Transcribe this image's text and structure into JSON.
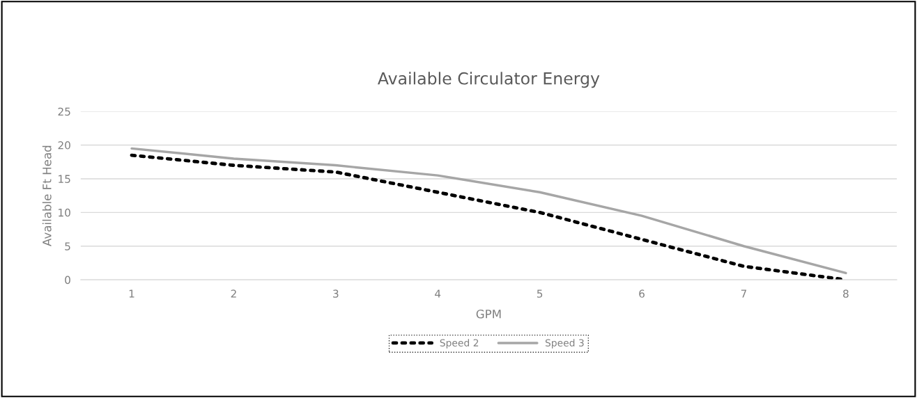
{
  "chart_data": {
    "type": "line",
    "title": "Available Circulator Energy",
    "xlabel": "GPM",
    "ylabel": "Available Ft Head",
    "categories": [
      "1",
      "2",
      "3",
      "4",
      "5",
      "6",
      "7",
      "8"
    ],
    "series": [
      {
        "name": "Speed 2",
        "color": "#000000",
        "line_style": "dotted",
        "values": [
          18.5,
          17,
          16,
          13,
          10,
          6,
          2,
          0
        ]
      },
      {
        "name": "Speed 3",
        "color": "#a6a6a6",
        "line_style": "solid",
        "values": [
          19.5,
          18,
          17,
          15.5,
          13,
          9.5,
          5,
          1
        ]
      }
    ],
    "ylim": [
      0,
      25
    ],
    "yticks": [
      0,
      5,
      10,
      15,
      20,
      25
    ],
    "grid": "y",
    "legend": "bottom",
    "marker": "none"
  }
}
